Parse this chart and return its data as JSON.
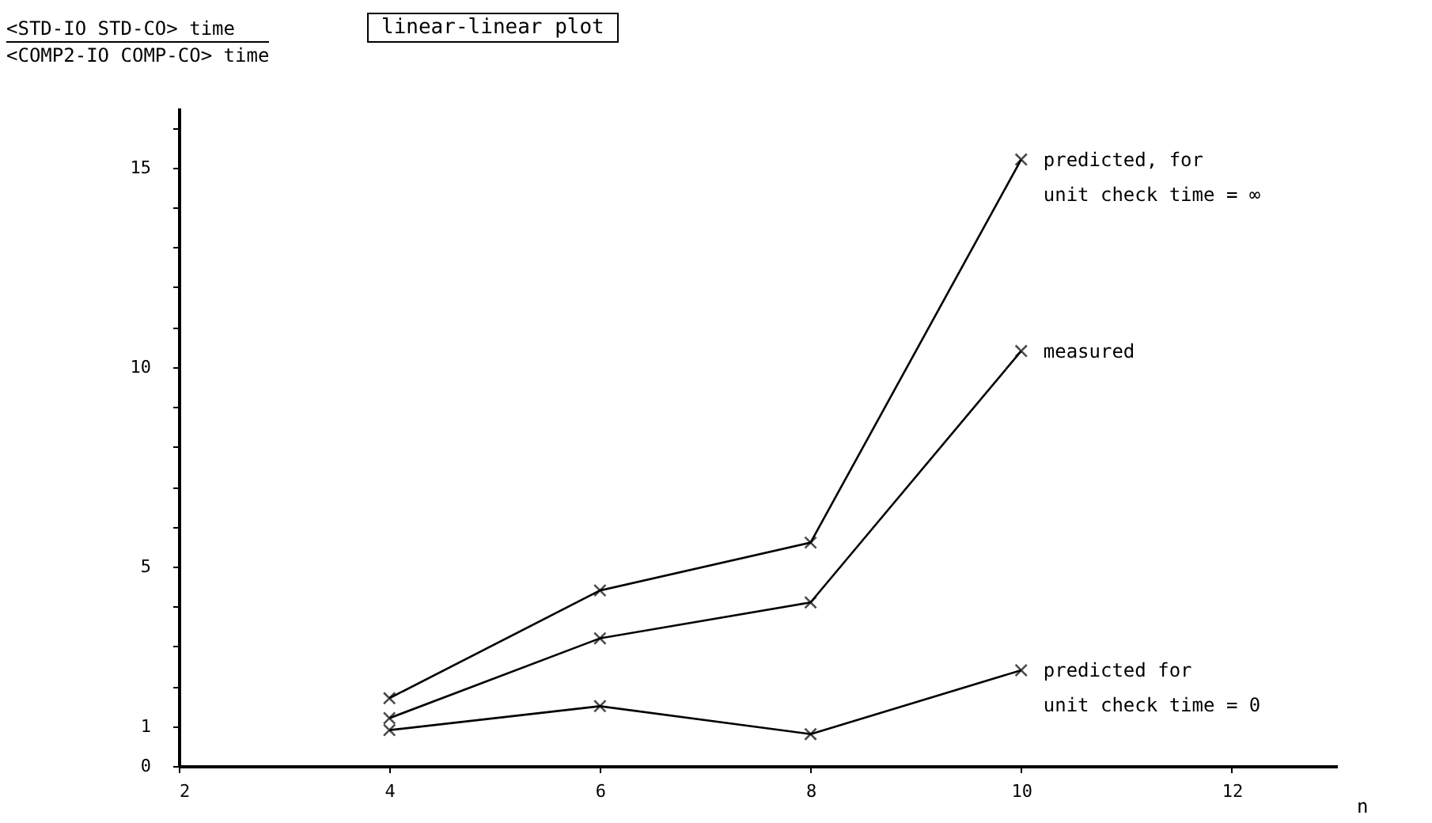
{
  "chart_data": {
    "type": "line",
    "title": "linear-linear plot",
    "ylabel": "<STD-IO STD-CO> time\n<COMP2-IO COMP-CO> time",
    "xlabel": "n",
    "x": [
      4,
      6,
      8,
      10
    ],
    "series": [
      {
        "name": "predicted, for\nunit check time = ∞",
        "color": "#000000",
        "values": [
          1.7,
          4.4,
          5.6,
          15.2
        ]
      },
      {
        "name": "measured",
        "color": "#000000",
        "values": [
          1.2,
          3.2,
          4.1,
          10.4
        ]
      },
      {
        "name": "predicted for\nunit check time = 0",
        "color": "#000000",
        "values": [
          0.9,
          1.5,
          0.8,
          2.4
        ]
      }
    ],
    "xlim": [
      2,
      13
    ],
    "xticks": [
      2,
      4,
      6,
      8,
      10,
      12
    ],
    "ylim": [
      0,
      16.5
    ],
    "yticks": [
      0,
      1,
      {
        "value": 2,
        "label": null
      },
      {
        "value": 3,
        "label": null
      },
      {
        "value": 4,
        "label": null
      },
      5,
      {
        "value": 6,
        "label": null
      },
      {
        "value": 7,
        "label": null
      },
      {
        "value": 8,
        "label": null
      },
      {
        "value": 9,
        "label": null
      },
      10,
      {
        "value": 11,
        "label": null
      },
      {
        "value": 12,
        "label": null
      },
      {
        "value": 13,
        "label": null
      },
      {
        "value": 14,
        "label": null
      },
      15,
      {
        "value": 16,
        "label": null
      }
    ],
    "marker": "cross",
    "line_style": "solid",
    "grid": false
  }
}
